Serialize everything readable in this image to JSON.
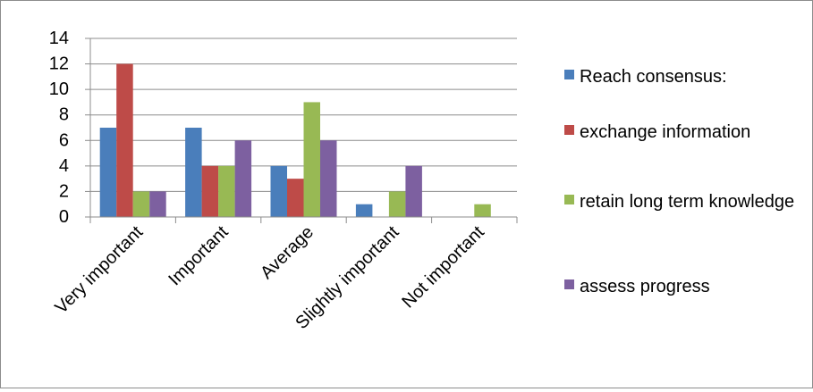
{
  "chart_data": {
    "type": "bar",
    "title": "",
    "xlabel": "",
    "ylabel": "",
    "categories": [
      "Very important",
      "Important",
      "Average",
      "Slightly important",
      "Not important"
    ],
    "series": [
      {
        "name": "Reach consensus:",
        "color": "#4a7ebb",
        "values": [
          7,
          7,
          4,
          1,
          0
        ]
      },
      {
        "name": "exchange information",
        "color": "#be4b48",
        "values": [
          12,
          4,
          3,
          0,
          0
        ]
      },
      {
        "name": "retain long term knowledge",
        "color": "#98b954",
        "values": [
          2,
          4,
          9,
          2,
          1
        ]
      },
      {
        "name": "assess progress",
        "color": "#7d60a0",
        "values": [
          2,
          6,
          6,
          4,
          0
        ]
      }
    ],
    "ylim": [
      0,
      14
    ],
    "yticks": [
      "0",
      "2",
      "4",
      "6",
      "8",
      "10",
      "12",
      "14"
    ],
    "grid": true,
    "legend_position": "right"
  }
}
